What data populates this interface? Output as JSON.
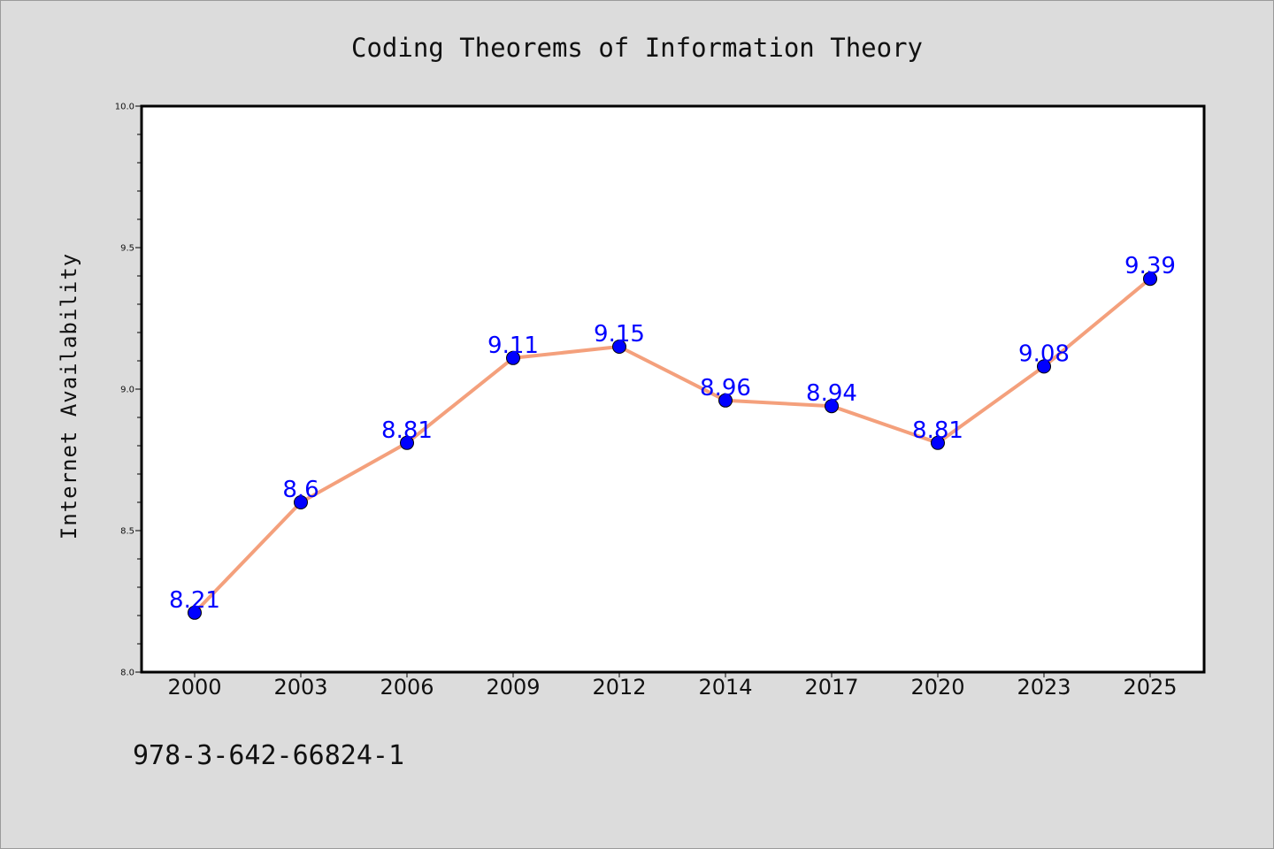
{
  "chart_data": {
    "type": "line",
    "title": "Coding Theorems of Information Theory",
    "xlabel": "",
    "ylabel": "Internet Availability",
    "categories": [
      "2000",
      "2003",
      "2006",
      "2009",
      "2012",
      "2014",
      "2017",
      "2020",
      "2023",
      "2025"
    ],
    "series": [
      {
        "values": [
          8.21,
          8.6,
          8.81,
          9.11,
          9.15,
          8.96,
          8.94,
          8.81,
          9.08,
          9.39
        ],
        "labels": [
          "8.21",
          "8.6",
          "8.81",
          "9.11",
          "9.15",
          "8.96",
          "8.94",
          "8.81",
          "9.08",
          "9.39"
        ]
      }
    ],
    "ylim": [
      8.0,
      10.0
    ],
    "yticks": [
      "8.0",
      "8.5",
      "9.0",
      "9.5",
      "10.0"
    ],
    "grid": false,
    "line_color": "#f4a07c",
    "marker_color": "#0000ff",
    "label_color": "#0000ff"
  },
  "footer": {
    "isbn": "978-3-642-66824-1"
  }
}
